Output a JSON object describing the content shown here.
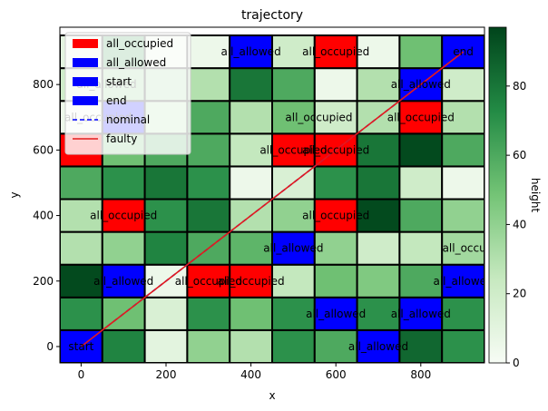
{
  "chart_data": {
    "type": "heatmap",
    "title": "trajectory",
    "xlabel": "x",
    "ylabel": "y",
    "xlim": [
      -50,
      950
    ],
    "ylim": [
      -50,
      975
    ],
    "xticks": [
      0,
      200,
      400,
      600,
      800
    ],
    "yticks": [
      0,
      200,
      400,
      600,
      800
    ],
    "grid": false,
    "cell_size": 100,
    "x_centers": [
      0,
      100,
      200,
      300,
      400,
      500,
      600,
      700,
      800,
      900
    ],
    "y_centers": [
      0,
      100,
      200,
      300,
      400,
      500,
      600,
      700,
      800,
      900
    ],
    "heights": [
      [
        30,
        75,
        10,
        40,
        30,
        70,
        60,
        95,
        85,
        70
      ],
      [
        70,
        50,
        15,
        70,
        50,
        70,
        10,
        70,
        40,
        70
      ],
      [
        95,
        85,
        5,
        50,
        40,
        25,
        50,
        45,
        60,
        70
      ],
      [
        30,
        40,
        75,
        60,
        55,
        80,
        40,
        20,
        25,
        35
      ],
      [
        30,
        25,
        70,
        80,
        30,
        40,
        30,
        95,
        60,
        40
      ],
      [
        60,
        70,
        80,
        70,
        5,
        15,
        70,
        80,
        20,
        5
      ],
      [
        15,
        50,
        60,
        60,
        25,
        5,
        70,
        80,
        95,
        60
      ],
      [
        5,
        70,
        30,
        60,
        30,
        50,
        20,
        30,
        60,
        30
      ],
      [
        20,
        40,
        35,
        30,
        80,
        60,
        5,
        30,
        45,
        20
      ],
      [
        10,
        65,
        10,
        5,
        50,
        20,
        10,
        5,
        50,
        30
      ]
    ],
    "colorbar": {
      "label": "height",
      "min": 0,
      "max": 97,
      "ticks": [
        0,
        20,
        40,
        60,
        80
      ]
    },
    "cell_labels": [
      {
        "x": 0,
        "y": 0,
        "type": "start",
        "text": "start"
      },
      {
        "x": 100,
        "y": 700,
        "type": "all_allowed",
        "text": ""
      },
      {
        "x": 0,
        "y": 600,
        "type": "all_occupied",
        "text": ""
      },
      {
        "x": 100,
        "y": 400,
        "type": "all_occupied",
        "text": "all_occupied"
      },
      {
        "x": 100,
        "y": 200,
        "type": "all_allowed",
        "text": "all_allowed"
      },
      {
        "x": 300,
        "y": 200,
        "type": "all_occupied",
        "text": "all_occupied"
      },
      {
        "x": 400,
        "y": 200,
        "type": "all_occupied",
        "text": "all_occupied"
      },
      {
        "x": 400,
        "y": 900,
        "type": "all_allowed",
        "text": "all_allowed"
      },
      {
        "x": 500,
        "y": 300,
        "type": "all_allowed",
        "text": "all_allowed"
      },
      {
        "x": 600,
        "y": 900,
        "type": "all_occupied",
        "text": "all_occupied"
      },
      {
        "x": 500,
        "y": 600,
        "type": "all_occupied",
        "text": "all_occupied"
      },
      {
        "x": 600,
        "y": 600,
        "type": "all_occupied",
        "text": "all_occupied"
      },
      {
        "x": 600,
        "y": 400,
        "type": "all_occupied",
        "text": "all_occupied"
      },
      {
        "x": 600,
        "y": 100,
        "type": "all_allowed",
        "text": "all_allowed"
      },
      {
        "x": 700,
        "y": 0,
        "type": "all_allowed",
        "text": "all_allowed"
      },
      {
        "x": 800,
        "y": 800,
        "type": "all_allowed",
        "text": "all_allowed"
      },
      {
        "x": 800,
        "y": 700,
        "type": "all_occupied",
        "text": "all_occupied"
      },
      {
        "x": 800,
        "y": 100,
        "type": "all_allowed",
        "text": "all_allowed"
      },
      {
        "x": 900,
        "y": 200,
        "type": "all_allowed",
        "text": "all_allowed"
      },
      {
        "x": 900,
        "y": 900,
        "type": "end",
        "text": "end"
      }
    ],
    "overlap_labels": [
      {
        "x": 60,
        "y": 800,
        "text": "all_allowed"
      },
      {
        "x": 40,
        "y": 700,
        "text": "all_occupied"
      },
      {
        "x": 560,
        "y": 700,
        "text": "all_occupied"
      },
      {
        "x": 930,
        "y": 300,
        "text": "all_occupied"
      }
    ],
    "series": [
      {
        "name": "nominal",
        "style": "dashed",
        "color": "#0000ff",
        "x": [
          0,
          900
        ],
        "y": [
          0,
          900
        ]
      },
      {
        "name": "faulty",
        "style": "solid",
        "color": "#e41a1c",
        "x": [
          0,
          900
        ],
        "y": [
          0,
          900
        ]
      }
    ],
    "legend": {
      "position": "top-left",
      "entries": [
        {
          "label": "all_occupied",
          "kind": "patch",
          "color": "#ff0000"
        },
        {
          "label": "all_allowed",
          "kind": "patch",
          "color": "#0000ff"
        },
        {
          "label": "start",
          "kind": "patch",
          "color": "#0000ff"
        },
        {
          "label": "end",
          "kind": "patch",
          "color": "#0000ff"
        },
        {
          "label": "nominal",
          "kind": "dashed",
          "color": "#0000ff"
        },
        {
          "label": "faulty",
          "kind": "line",
          "color": "#e41a1c"
        }
      ]
    },
    "colors": {
      "all_occupied": "#ff0000",
      "all_allowed": "#0000ff",
      "start": "#0000ff",
      "end": "#0000ff"
    }
  }
}
